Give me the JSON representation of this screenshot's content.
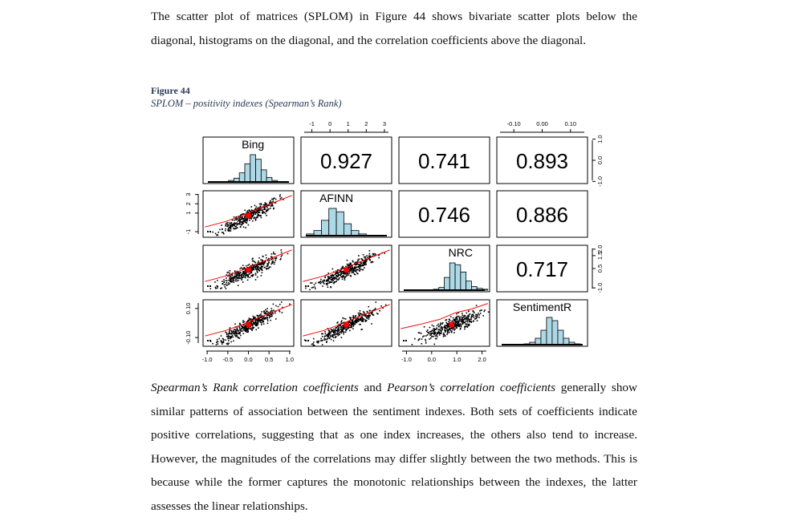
{
  "paragraph_intro": "The scatter plot of matrices (SPLOM) in Figure 44 shows bivariate scatter plots below the diagonal, histograms on the diagonal, and the correlation coefficients above the diagonal.",
  "figure": {
    "label": "Figure 44",
    "caption": "SPLOM – positivity indexes (Spearman’s Rank)"
  },
  "paragraph_outro": {
    "term1": "Spearman’s Rank correlation coefficients",
    "and": " and ",
    "term2": "Pearson’s correlation coefficients",
    "rest": " generally show similar patterns of association between the sentiment indexes. Both sets of coefficients indicate positive correlations, suggesting that as one index increases, the others also tend to increase. However, the magnitudes of the correlations may differ slightly between the two methods. This is because while the former captures the monotonic relationships between the indexes, the latter assesses the linear relationships."
  },
  "chart_data": {
    "type": "scatter",
    "variables": [
      "Bing",
      "AFINN",
      "NRC",
      "SentimentR"
    ],
    "correlations": [
      {
        "row": 0,
        "col": 1,
        "value": "0.927"
      },
      {
        "row": 0,
        "col": 2,
        "value": "0.741"
      },
      {
        "row": 0,
        "col": 3,
        "value": "0.893"
      },
      {
        "row": 1,
        "col": 2,
        "value": "0.746"
      },
      {
        "row": 1,
        "col": 3,
        "value": "0.886"
      },
      {
        "row": 2,
        "col": 3,
        "value": "0.717"
      }
    ],
    "axes": {
      "top_AFINN": {
        "ticks": [
          "-1",
          "0",
          "1",
          "2",
          "3"
        ],
        "range": [
          -1.6,
          3.4
        ]
      },
      "top_SentimentR": {
        "ticks": [
          "-0.10",
          "0.00",
          "0.10"
        ],
        "range": [
          -0.16,
          0.16
        ]
      },
      "bottom_Bing": {
        "ticks": [
          "-1.0",
          "-0.5",
          "0.0",
          "0.5",
          "1.0"
        ],
        "range": [
          -1.1,
          1.1
        ]
      },
      "bottom_NRC": {
        "ticks": [
          "-1.0",
          "0.0",
          "1.0",
          "2.0"
        ],
        "range": [
          -1.3,
          2.3
        ]
      },
      "left_AFINN": {
        "ticks": [
          "-1",
          "1",
          "2",
          "3"
        ],
        "range": [
          -1.6,
          3.4
        ]
      },
      "left_SentimentR": {
        "ticks": [
          "-0.10",
          "0.10"
        ],
        "range": [
          -0.16,
          0.16
        ]
      },
      "right_Bing": {
        "ticks": [
          "-1.0",
          "0.0",
          "1.0"
        ],
        "range": [
          -1.1,
          1.1
        ]
      },
      "right_NRC": {
        "ticks": [
          "-1.0",
          "0.5",
          "1.5",
          "2.0"
        ],
        "range": [
          -1.3,
          2.3
        ]
      }
    },
    "histogram_color": "#add8e6",
    "point_color": "#000000",
    "fit_color": "#ff0000",
    "mean_color": "#ff0000"
  }
}
